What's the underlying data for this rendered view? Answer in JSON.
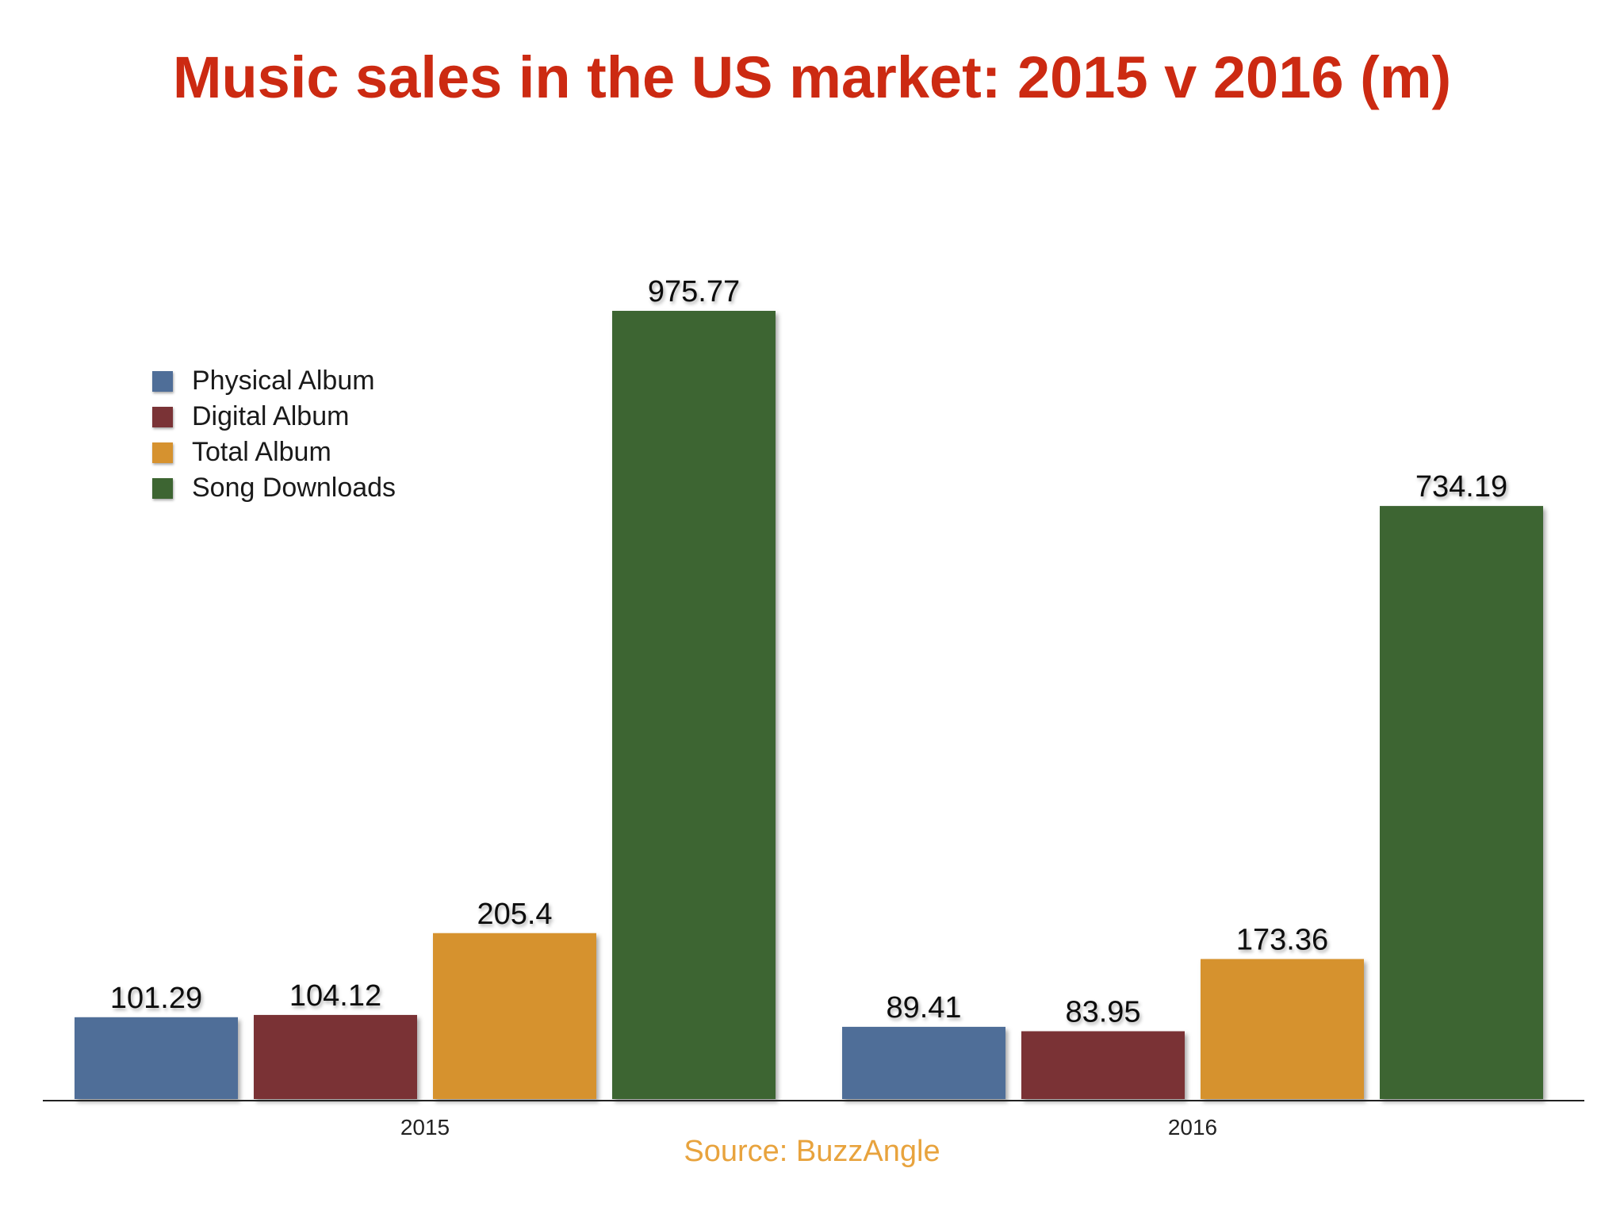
{
  "title": "Music sales in the US market: 2015 v 2016 (m)",
  "source_label": "Source: BuzzAngle",
  "colors": {
    "title": "#cc2a12",
    "source": "#e8a33d",
    "axis": "#222222"
  },
  "chart_data": {
    "type": "bar",
    "title": "Music sales in the US market: 2015 v 2016 (m)",
    "categories": [
      "2015",
      "2016"
    ],
    "series": [
      {
        "name": "Physical Album",
        "color": "#4f6e98",
        "values": [
          101.29,
          89.41
        ]
      },
      {
        "name": "Digital Album",
        "color": "#7a3336",
        "values": [
          104.12,
          83.95
        ]
      },
      {
        "name": "Total Album",
        "color": "#d6922f",
        "values": [
          205.4,
          173.36
        ]
      },
      {
        "name": "Song Downloads",
        "color": "#3d6532",
        "values": [
          975.77,
          734.19
        ]
      }
    ],
    "data_labels": [
      [
        "101.29",
        "89.41"
      ],
      [
        "104.12",
        "83.95"
      ],
      [
        "205.4",
        "173.36"
      ],
      [
        "975.77",
        "734.19"
      ]
    ],
    "ylim": [
      0,
      975.77
    ],
    "xlabel": "",
    "ylabel": "",
    "grid": false,
    "legend_position": "top-left"
  }
}
